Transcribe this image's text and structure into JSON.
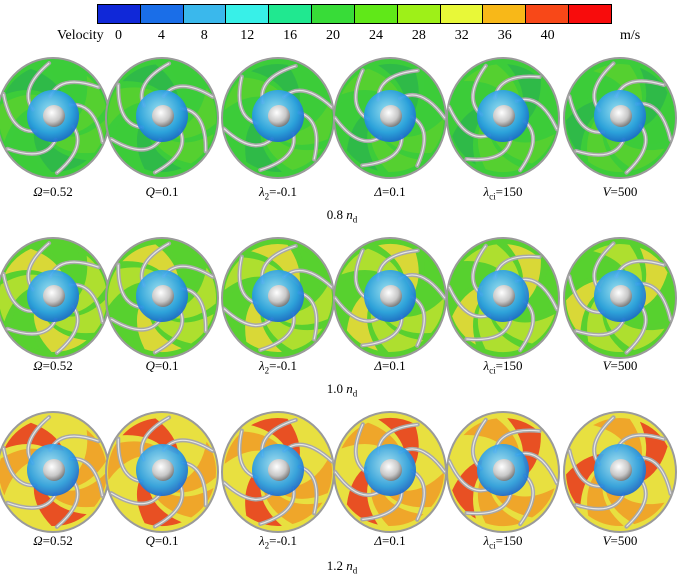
{
  "colorbar": {
    "title": "Velocity",
    "unit": "m/s",
    "ticks": [
      "0",
      "4",
      "8",
      "12",
      "16",
      "20",
      "24",
      "28",
      "32",
      "36",
      "40"
    ],
    "colors": [
      "#1028d8",
      "#1a6ee8",
      "#3ab8ec",
      "#38f0e8",
      "#20e890",
      "#38dc38",
      "#60e818",
      "#9ef018",
      "#e8f838",
      "#f8b818",
      "#f84818",
      "#f80c0c"
    ]
  },
  "rows": [
    {
      "speed": "0.8",
      "speed_symbol": "n",
      "speed_subscript": "d",
      "dominant_colors": [
        "#3ccc3a",
        "#58d030",
        "#2eb84a"
      ],
      "panels": [
        {
          "sym": "Ω",
          "sub": "",
          "value": "=0.52"
        },
        {
          "sym": "Q",
          "sub": "",
          "value": "=0.1"
        },
        {
          "sym": "λ",
          "sub": "2",
          "value": "=-0.1"
        },
        {
          "sym": "Δ",
          "sub": "",
          "value": "=0.1"
        },
        {
          "sym": "λ",
          "sub": "ci",
          "value": "=150"
        },
        {
          "sym": "V",
          "sub": "",
          "value": "=500"
        }
      ]
    },
    {
      "speed": "1.0",
      "speed_symbol": "n",
      "speed_subscript": "d",
      "dominant_colors": [
        "#58d030",
        "#b8e030",
        "#e8d838"
      ],
      "panels": [
        {
          "sym": "Ω",
          "sub": "",
          "value": "=0.52"
        },
        {
          "sym": "Q",
          "sub": "",
          "value": "=0.1"
        },
        {
          "sym": "λ",
          "sub": "2",
          "value": "=-0.1"
        },
        {
          "sym": "Δ",
          "sub": "",
          "value": "=0.1"
        },
        {
          "sym": "λ",
          "sub": "ci",
          "value": "=150"
        },
        {
          "sym": "V",
          "sub": "",
          "value": "=500"
        }
      ]
    },
    {
      "speed": "1.2",
      "speed_symbol": "n",
      "speed_subscript": "d",
      "dominant_colors": [
        "#e8e040",
        "#f0a028",
        "#e84020"
      ],
      "panels": [
        {
          "sym": "Ω",
          "sub": "",
          "value": "=0.52"
        },
        {
          "sym": "Q",
          "sub": "",
          "value": "=0.1"
        },
        {
          "sym": "λ",
          "sub": "2",
          "value": "=-0.1"
        },
        {
          "sym": "Δ",
          "sub": "",
          "value": "=0.1"
        },
        {
          "sym": "λ",
          "sub": "ci",
          "value": "=150"
        },
        {
          "sym": "V",
          "sub": "",
          "value": "=500"
        }
      ]
    }
  ]
}
